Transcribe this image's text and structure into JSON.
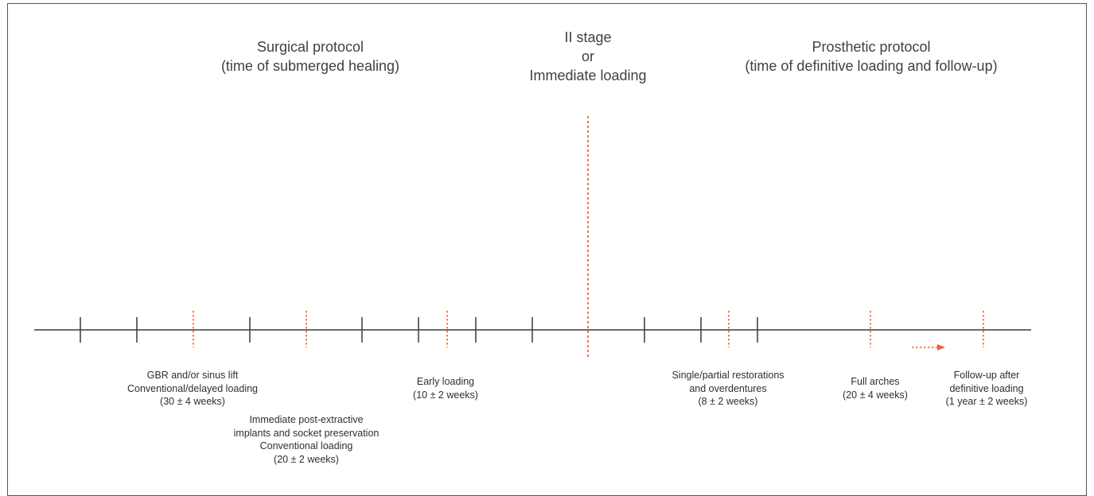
{
  "headers": {
    "surgical": [
      "Surgical protocol",
      "(time of submerged healing)"
    ],
    "stage": [
      "II stage",
      "or",
      "Immediate loading"
    ],
    "prosthetic": [
      "Prosthetic protocol",
      "(time of definitive loading and follow-up)"
    ]
  },
  "labels": {
    "gbr": [
      "GBR and/or sinus lift",
      "Conventional/delayed loading",
      "(30 ± 4 weeks)"
    ],
    "post_extractive": [
      "Immediate post-extractive",
      "implants and socket preservation",
      "Conventional loading",
      "(20 ± 2 weeks)"
    ],
    "early": [
      "Early loading",
      "(10 ± 2 weeks)"
    ],
    "single": [
      "Single/partial restorations",
      "and overdentures",
      "(8 ± 2 weeks)"
    ],
    "full_arches": [
      "Full arches",
      "(20 ± 4 weeks)"
    ],
    "follow_up": [
      "Follow-up after",
      "definitive loading",
      "(1 year ± 2 weeks)"
    ]
  },
  "colors": {
    "axis": "#3c3c3c",
    "tick": "#444444",
    "marker": "#f0623c",
    "text": "#333333"
  }
}
